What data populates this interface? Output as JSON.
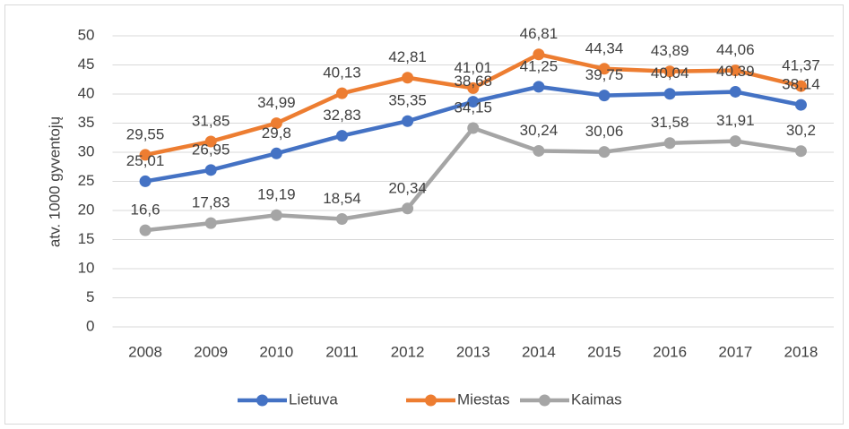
{
  "chart_data": {
    "type": "line",
    "y_label": "atv. 1000 gyventojų",
    "categories": [
      "2008",
      "2009",
      "2010",
      "2011",
      "2012",
      "2013",
      "2014",
      "2015",
      "2016",
      "2017",
      "2018"
    ],
    "series": [
      {
        "name": "Lietuva",
        "color": "#4472c4",
        "values": [
          25.01,
          26.95,
          29.8,
          32.83,
          35.35,
          38.68,
          41.25,
          39.75,
          40.04,
          40.39,
          38.14
        ],
        "value_labels": [
          "25,01",
          "26,95",
          "29,8",
          "32,83",
          "35,35",
          "38,68",
          "41,25",
          "39,75",
          "40,04",
          "40,39",
          "38,14"
        ]
      },
      {
        "name": "Miestas",
        "color": "#ed7d31",
        "values": [
          29.55,
          31.85,
          34.99,
          40.13,
          42.81,
          41.01,
          46.81,
          44.34,
          43.89,
          44.06,
          41.37
        ],
        "value_labels": [
          "29,55",
          "31,85",
          "34,99",
          "40,13",
          "42,81",
          "41,01",
          "46,81",
          "44,34",
          "43,89",
          "44,06",
          "41,37"
        ]
      },
      {
        "name": "Kaimas",
        "color": "#a5a5a5",
        "values": [
          16.6,
          17.83,
          19.19,
          18.54,
          20.34,
          34.15,
          30.24,
          30.06,
          31.58,
          31.91,
          30.2
        ],
        "value_labels": [
          "16,6",
          "17,83",
          "19,19",
          "18,54",
          "20,34",
          "34,15",
          "30,24",
          "30,06",
          "31,58",
          "31,91",
          "30,2"
        ]
      }
    ],
    "ylim": [
      0,
      50
    ],
    "yticks": [
      0,
      5,
      10,
      15,
      20,
      25,
      30,
      35,
      40,
      45,
      50
    ],
    "grid": true,
    "legend": "bottom"
  }
}
